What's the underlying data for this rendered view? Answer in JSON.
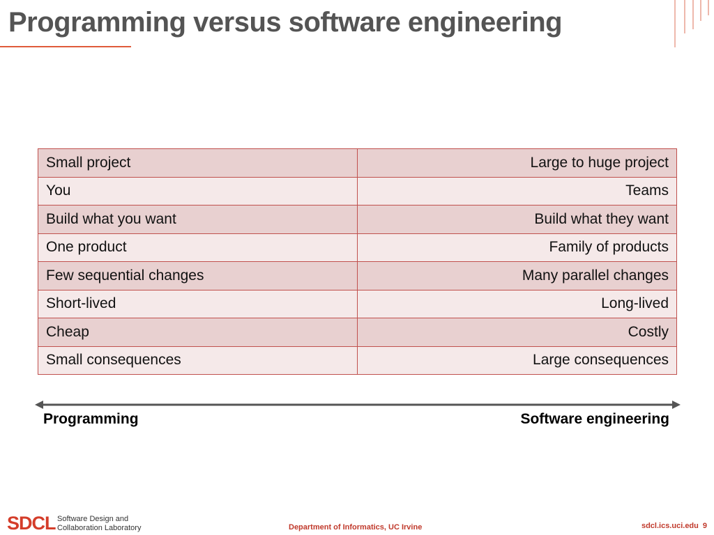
{
  "slide": {
    "title": "Programming versus software engineering",
    "rows": [
      {
        "left": "Small project",
        "right": "Large to huge project"
      },
      {
        "left": "You",
        "right": "Teams"
      },
      {
        "left": "Build what you want",
        "right": "Build what they want"
      },
      {
        "left": "One product",
        "right": "Family of products"
      },
      {
        "left": "Few sequential changes",
        "right": "Many parallel changes"
      },
      {
        "left": "Short-lived",
        "right": "Long-lived"
      },
      {
        "left": "Cheap",
        "right": "Costly"
      },
      {
        "left": "Small consequences",
        "right": "Large consequences"
      }
    ],
    "axis": {
      "left_label": "Programming",
      "right_label": "Software engineering",
      "icon": "double-arrow-icon"
    }
  },
  "footer": {
    "logo_text": "SDCL",
    "logo_sub_line1": "Software Design and",
    "logo_sub_line2": "Collaboration Laboratory",
    "department": "Department of Informatics, UC Irvine",
    "site": "sdcl.ics.uci.edu",
    "page_number": "9"
  },
  "colors": {
    "accent": "#c0504d",
    "title": "#545454",
    "row_odd": "#e8d0d0",
    "row_even": "#f5e9e9"
  }
}
